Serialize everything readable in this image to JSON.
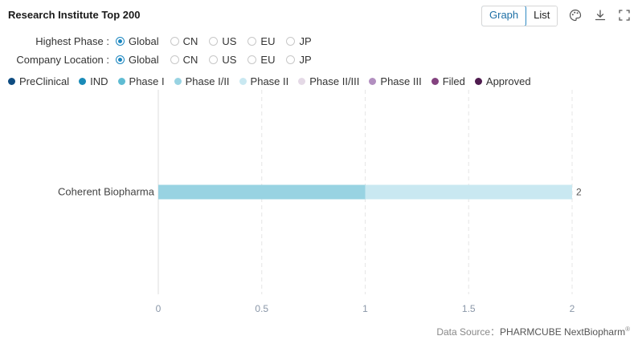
{
  "header": {
    "title": "Research Institute Top 200",
    "view_graph": "Graph",
    "view_list": "List"
  },
  "toolbar": {
    "icons": [
      "palette-icon",
      "download-icon",
      "fullscreen-icon"
    ]
  },
  "filters": {
    "highest_phase": {
      "label": "Highest Phase :",
      "options": [
        "Global",
        "CN",
        "US",
        "EU",
        "JP"
      ],
      "selected": "Global"
    },
    "company_location": {
      "label": "Company Location :",
      "options": [
        "Global",
        "CN",
        "US",
        "EU",
        "JP"
      ],
      "selected": "Global"
    }
  },
  "legend": [
    {
      "name": "PreClinical",
      "color": "#0f4c81"
    },
    {
      "name": "IND",
      "color": "#1a8bb8"
    },
    {
      "name": "Phase I",
      "color": "#5fbcd3"
    },
    {
      "name": "Phase I/II",
      "color": "#98d3e2"
    },
    {
      "name": "Phase II",
      "color": "#c9e8f1"
    },
    {
      "name": "Phase II/III",
      "color": "#e4d9e6"
    },
    {
      "name": "Phase III",
      "color": "#b28fc0"
    },
    {
      "name": "Filed",
      "color": "#83427f"
    },
    {
      "name": "Approved",
      "color": "#4f1c4f"
    }
  ],
  "chart_data": {
    "type": "bar",
    "orientation": "horizontal",
    "stacked": true,
    "categories": [
      "Coherent Biopharma"
    ],
    "series": [
      {
        "name": "Phase I/II",
        "values": [
          1
        ]
      },
      {
        "name": "Phase II",
        "values": [
          1
        ]
      }
    ],
    "totals": [
      2
    ],
    "xlim": [
      0,
      2
    ],
    "xticks": [
      "0",
      "0.5",
      "1",
      "1.5",
      "2"
    ],
    "grid": "vertical dashed"
  },
  "footer": {
    "label": "Data Source：",
    "brand": "PHARMCUBE NextBiopharm",
    "mark": "®"
  }
}
